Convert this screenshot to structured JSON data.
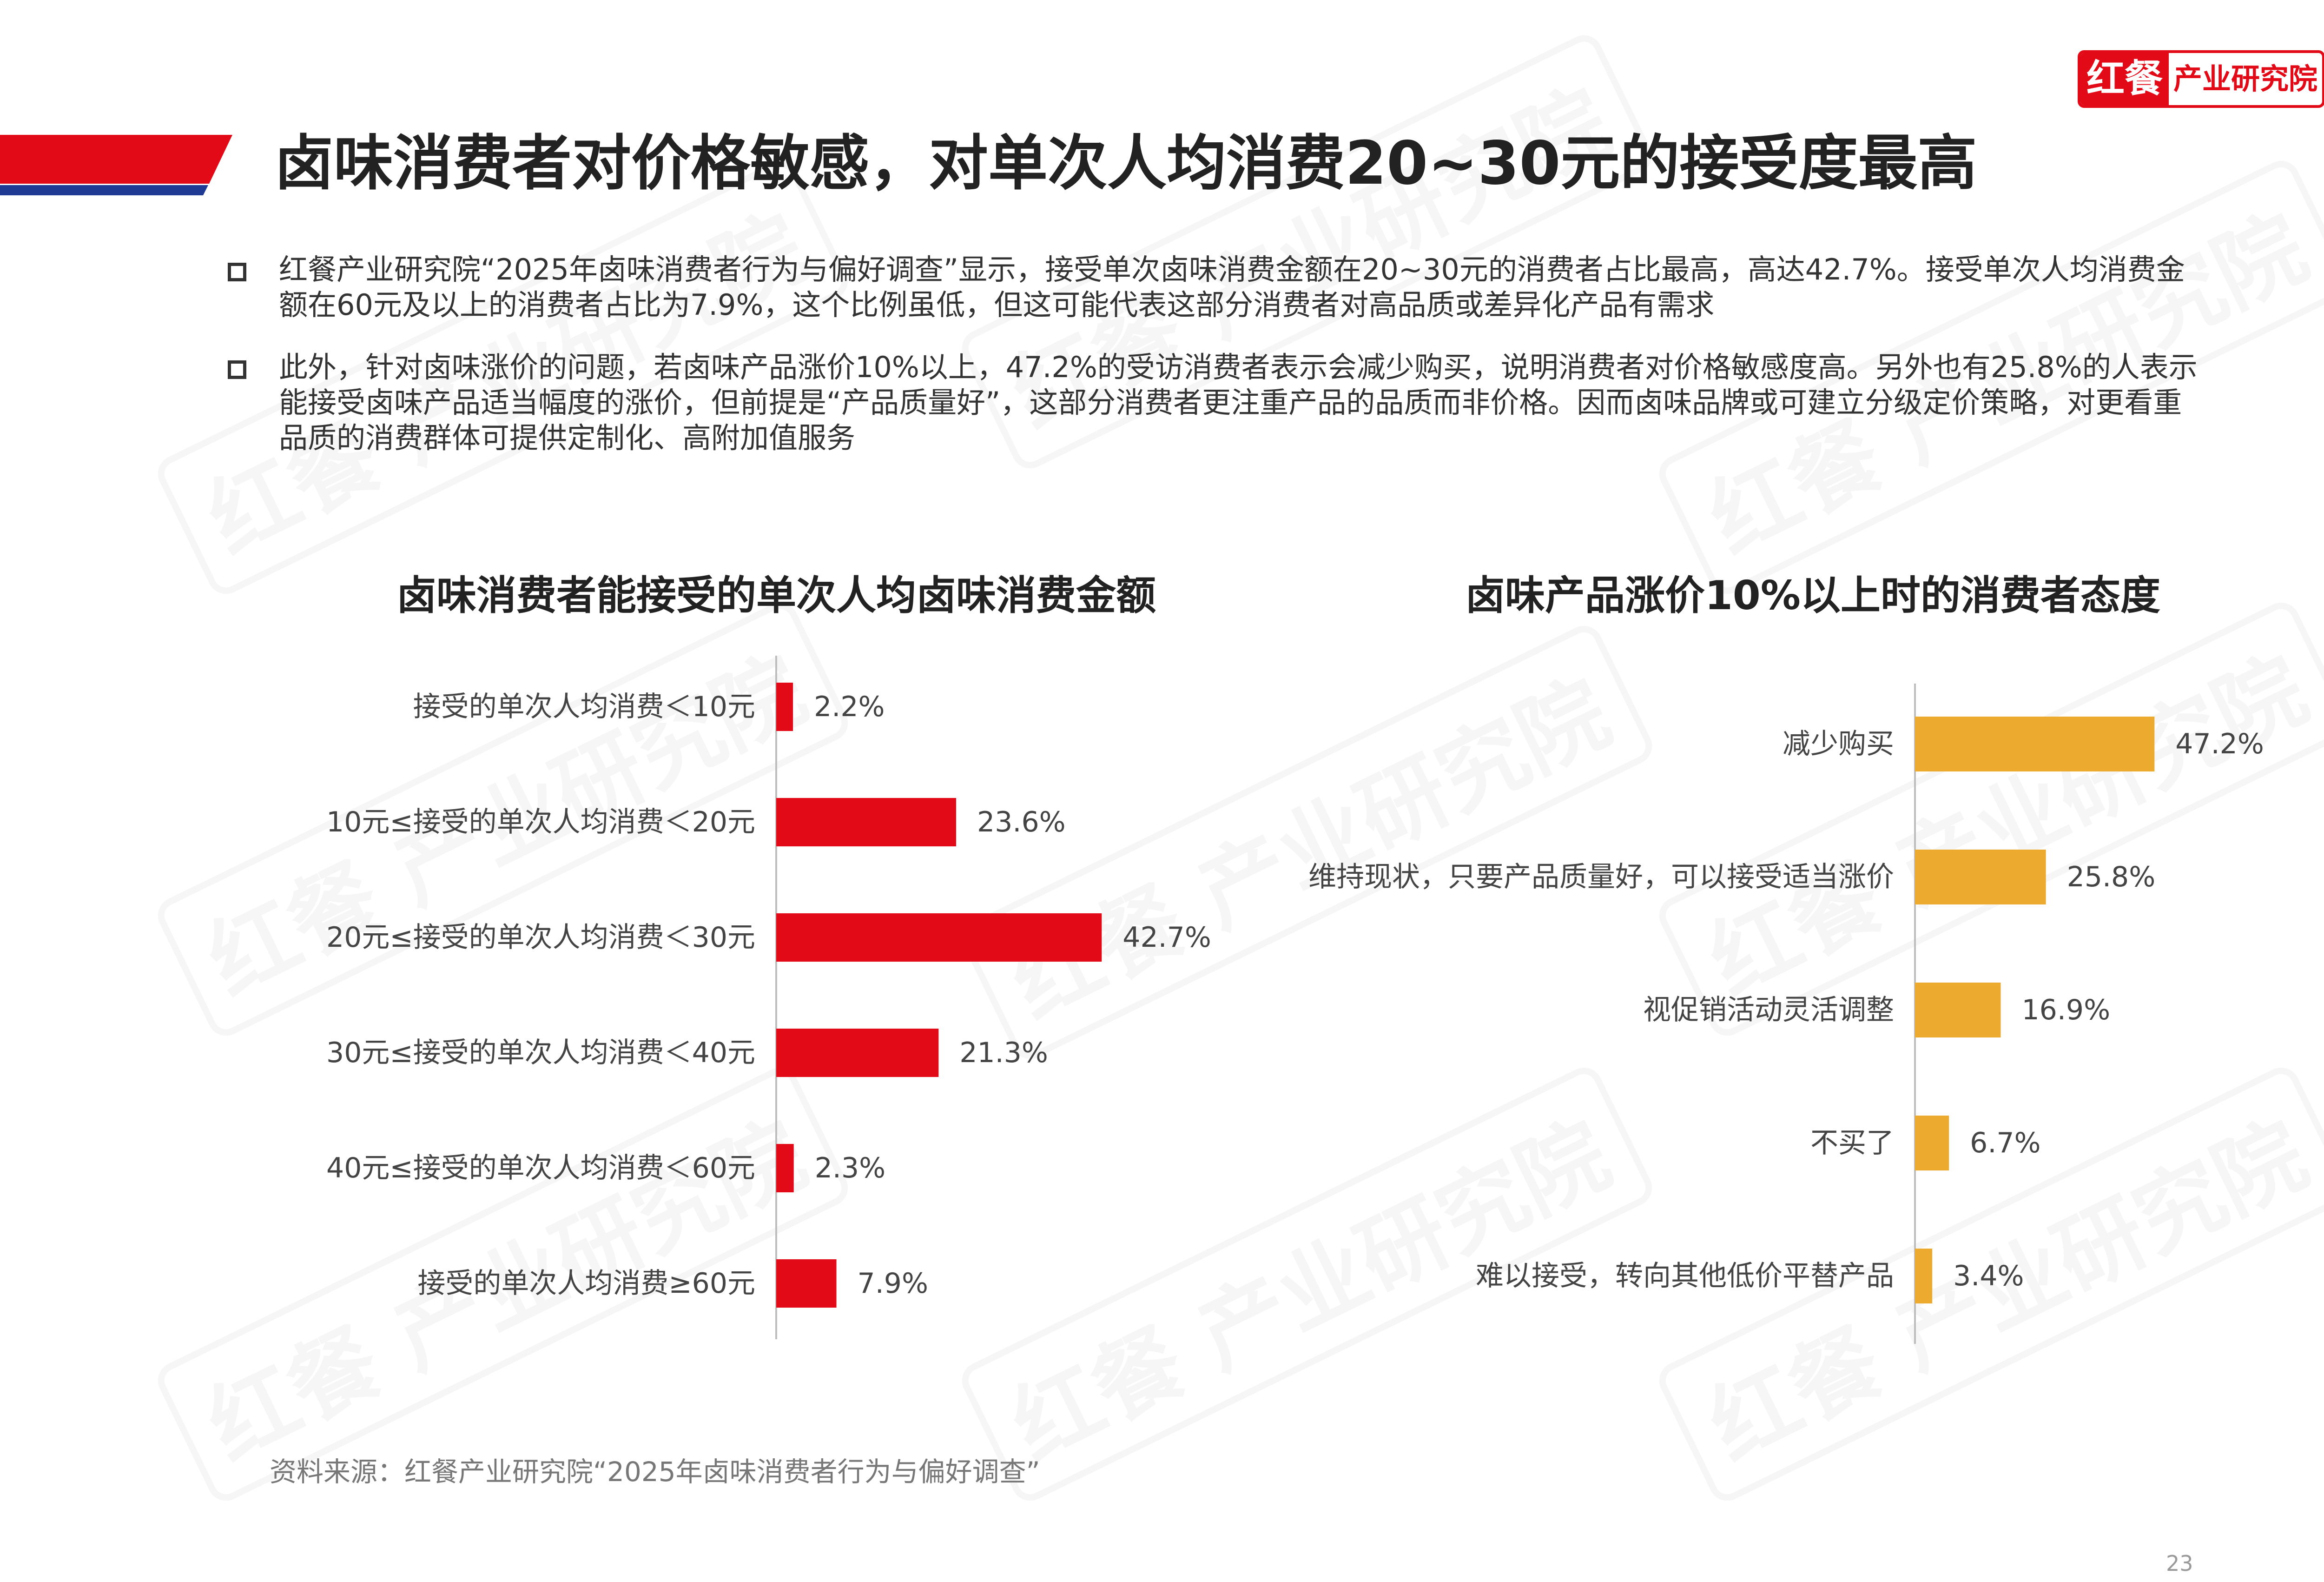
{
  "logo": {
    "mark": "红餐",
    "word": "产业研究院"
  },
  "header": {
    "title": "卤味消费者对价格敏感，对单次人均消费20~30元的接受度最高",
    "accent_red": "#e30a17",
    "accent_blue": "#1f3a93"
  },
  "bullets": [
    "红餐产业研究院“2025年卤味消费者行为与偏好调查”显示，接受单次卤味消费金额在20~30元的消费者占比最高，高达42.7%。接受单次人均消费金额在60元及以上的消费者占比为7.9%，这个比例虽低，但这可能代表这部分消费者对高品质或差异化产品有需求",
    "此外，针对卤味涨价的问题，若卤味产品涨价10%以上，47.2%的受访消费者表示会减少购买，说明消费者对价格敏感度高。另外也有25.8%的人表示能接受卤味产品适当幅度的涨价，但前提是“产品质量好”，这部分消费者更注重产品的品质而非价格。因而卤味品牌或可建立分级定价策略，对更看重品质的消费群体可提供定制化、高附加值服务"
  ],
  "chart_data": [
    {
      "type": "bar",
      "orientation": "horizontal",
      "title": "卤味消费者能接受的单次人均卤味消费金额",
      "categories": [
        "接受的单次人均消费＜10元",
        "10元≤接受的单次人均消费＜20元",
        "20元≤接受的单次人均消费＜30元",
        "30元≤接受的单次人均消费＜40元",
        "40元≤接受的单次人均消费＜60元",
        "接受的单次人均消费≥60元"
      ],
      "values": [
        2.2,
        23.6,
        42.7,
        21.3,
        2.3,
        7.9
      ],
      "labels": [
        "2.2%",
        "23.6%",
        "42.7%",
        "21.3%",
        "2.3%",
        "7.9%"
      ],
      "unit": "%",
      "color": "#e30a17",
      "xlim": [
        0,
        50
      ]
    },
    {
      "type": "bar",
      "orientation": "horizontal",
      "title": "卤味产品涨价10%以上时的消费者态度",
      "categories": [
        "减少购买",
        "维持现状，只要产品质量好，可以接受适当涨价",
        "视促销活动灵活调整",
        "不买了",
        "难以接受，转向其他低价平替产品"
      ],
      "values": [
        47.2,
        25.8,
        16.9,
        6.7,
        3.4
      ],
      "labels": [
        "47.2%",
        "25.8%",
        "16.9%",
        "6.7%",
        "3.4%"
      ],
      "unit": "%",
      "color": "#ecaa2f",
      "xlim": [
        0,
        60
      ]
    }
  ],
  "footer": {
    "source": "资料来源：红餐产业研究院“2025年卤味消费者行为与偏好调查”",
    "page": "23"
  },
  "watermark": "红餐 产业研究院"
}
